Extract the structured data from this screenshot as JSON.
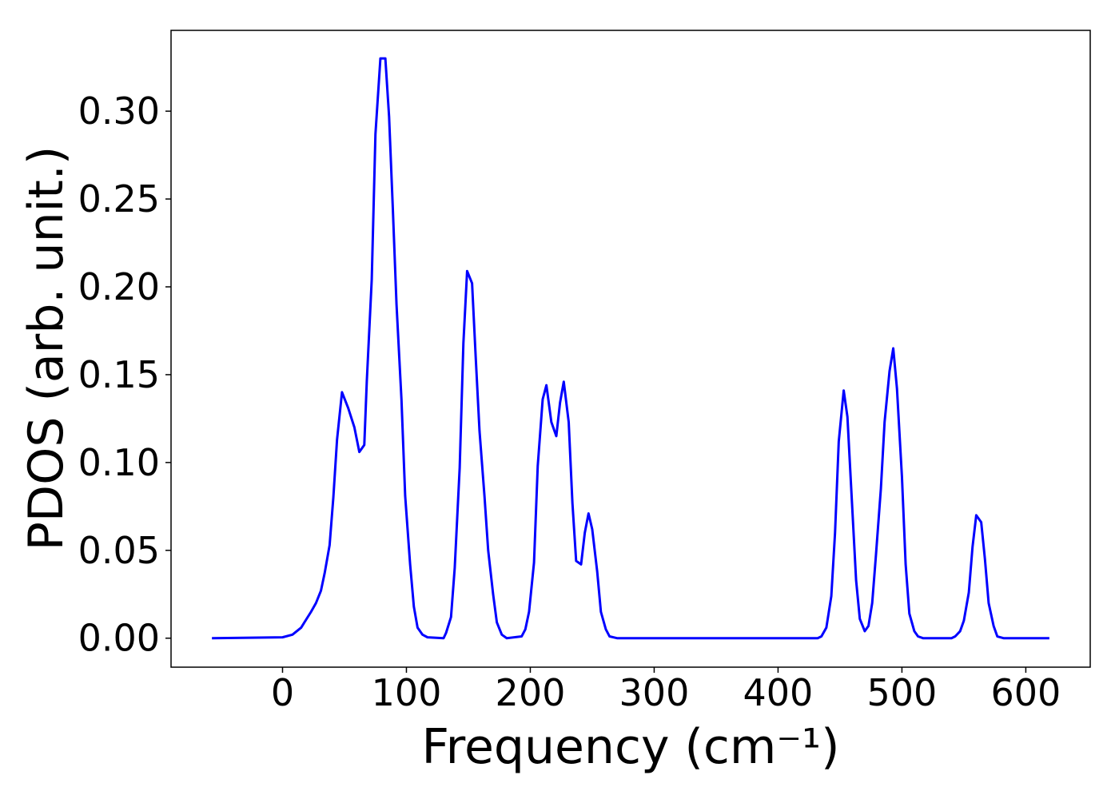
{
  "chart_data": {
    "type": "line",
    "xlabel": "Frequency (cm⁻¹)",
    "ylabel": "PDOS (arb. unit.)",
    "xlim": [
      -90,
      652
    ],
    "ylim": [
      -0.0165,
      0.346
    ],
    "xticks": [
      0,
      100,
      200,
      300,
      400,
      500,
      600
    ],
    "yticks": [
      {
        "value": 0,
        "label": "0.00"
      },
      {
        "value": 0.05,
        "label": "0.05"
      },
      {
        "value": 0.1,
        "label": "0.10"
      },
      {
        "value": 0.15,
        "label": "0.15"
      },
      {
        "value": 0.2,
        "label": "0.20"
      },
      {
        "value": 0.25,
        "label": "0.25"
      },
      {
        "value": 0.3,
        "label": "0.30"
      }
    ],
    "grid": false,
    "series": [
      {
        "color": "#0000ff",
        "x": [
          -57,
          0,
          8,
          15,
          23,
          27,
          31,
          34,
          38,
          41,
          44,
          48,
          53,
          58,
          62,
          66,
          68,
          72,
          75,
          79,
          83,
          86,
          89,
          92,
          96,
          99,
          103,
          106,
          109,
          113,
          117,
          130,
          132,
          136,
          139,
          143,
          146,
          149,
          153,
          156,
          159,
          163,
          166,
          170,
          173,
          177,
          181,
          193,
          196,
          199,
          203,
          206,
          210,
          213,
          217,
          221,
          224,
          227,
          231,
          234,
          237,
          241,
          244,
          247,
          250,
          254,
          257,
          261,
          264,
          270,
          432,
          435,
          439,
          443,
          446,
          449,
          453,
          456,
          459,
          463,
          466,
          470,
          473,
          476,
          479,
          483,
          486,
          490,
          493,
          496,
          500,
          503,
          506,
          510,
          513,
          517,
          540,
          543,
          547,
          550,
          554,
          557,
          560,
          564,
          567,
          570,
          574,
          577,
          582,
          619
        ],
        "values": [
          0,
          0.0005,
          0.002,
          0.006,
          0.015,
          0.02,
          0.027,
          0.037,
          0.053,
          0.08,
          0.113,
          0.14,
          0.131,
          0.12,
          0.106,
          0.11,
          0.146,
          0.204,
          0.287,
          0.33,
          0.33,
          0.297,
          0.245,
          0.19,
          0.136,
          0.081,
          0.042,
          0.018,
          0.006,
          0.002,
          0.0005,
          0,
          0.003,
          0.012,
          0.04,
          0.097,
          0.168,
          0.209,
          0.202,
          0.159,
          0.118,
          0.081,
          0.05,
          0.025,
          0.009,
          0.002,
          0,
          0.001,
          0.005,
          0.015,
          0.043,
          0.098,
          0.136,
          0.144,
          0.123,
          0.115,
          0.134,
          0.146,
          0.123,
          0.077,
          0.044,
          0.042,
          0.06,
          0.071,
          0.062,
          0.038,
          0.015,
          0.005,
          0.001,
          0,
          0,
          0.001,
          0.006,
          0.024,
          0.06,
          0.112,
          0.141,
          0.126,
          0.086,
          0.033,
          0.011,
          0.004,
          0.007,
          0.02,
          0.047,
          0.085,
          0.123,
          0.152,
          0.165,
          0.142,
          0.092,
          0.042,
          0.014,
          0.004,
          0.001,
          0,
          0,
          0.001,
          0.004,
          0.01,
          0.026,
          0.052,
          0.07,
          0.066,
          0.045,
          0.02,
          0.007,
          0.001,
          0,
          0
        ]
      }
    ]
  }
}
